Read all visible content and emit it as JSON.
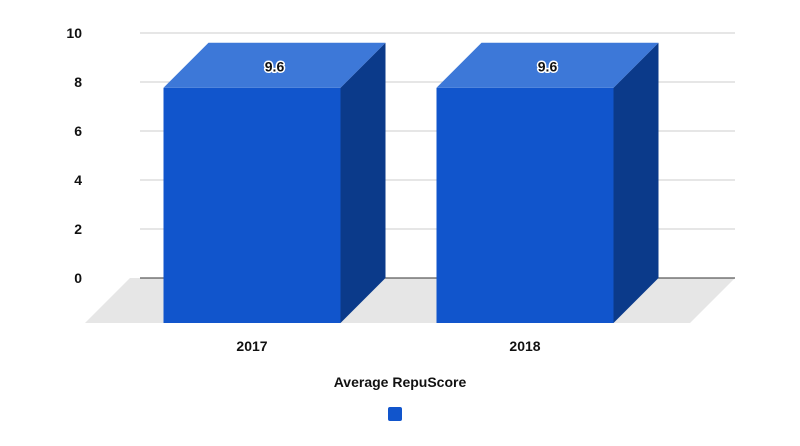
{
  "chart_data": {
    "type": "bar",
    "style": "3d",
    "categories": [
      "2017",
      "2018"
    ],
    "series": [
      {
        "name": "Average RepuScore",
        "values": [
          9.6,
          9.6
        ]
      }
    ],
    "data_labels": [
      "9.6",
      "9.6"
    ],
    "title": "",
    "xlabel": "",
    "ylabel": "",
    "ylim": [
      0,
      10
    ],
    "yticks": [
      0,
      2,
      4,
      6,
      8,
      10
    ],
    "grid": true,
    "legend": {
      "placement": "bottom-center",
      "title": "Average RepuScore"
    },
    "colors": {
      "bar_front": "#1155cc",
      "bar_top": "#3d78d8",
      "bar_side": "#0b3a8a",
      "floor": "#e6e6e6",
      "grid": "#cccccc",
      "axis": "#333333"
    }
  }
}
